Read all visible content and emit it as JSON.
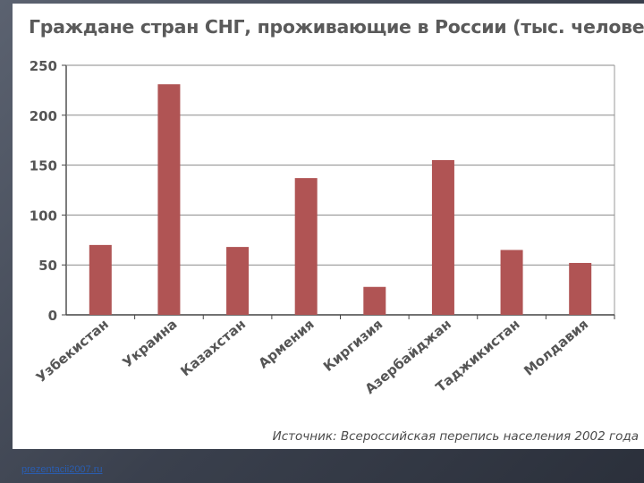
{
  "chart_data": {
    "type": "bar",
    "title": "Граждане стран СНГ, проживающие в России (тыс. человек)",
    "categories": [
      "Узбекистан",
      "Украина",
      "Казахстан",
      "Армения",
      "Киргизия",
      "Азербайджан",
      "Таджикистан",
      "Молдавия"
    ],
    "values": [
      70,
      231,
      68,
      137,
      28,
      155,
      65,
      52
    ],
    "ylim": [
      0,
      250
    ],
    "yticks": [
      "250",
      "200",
      "150",
      "100",
      "50",
      "0"
    ],
    "grid": true,
    "bar_color": "#b05454",
    "source": "Источник: Всероссийская перепись населения 2002 года"
  },
  "footer": {
    "link_text": "prezentacii2007.ru"
  }
}
